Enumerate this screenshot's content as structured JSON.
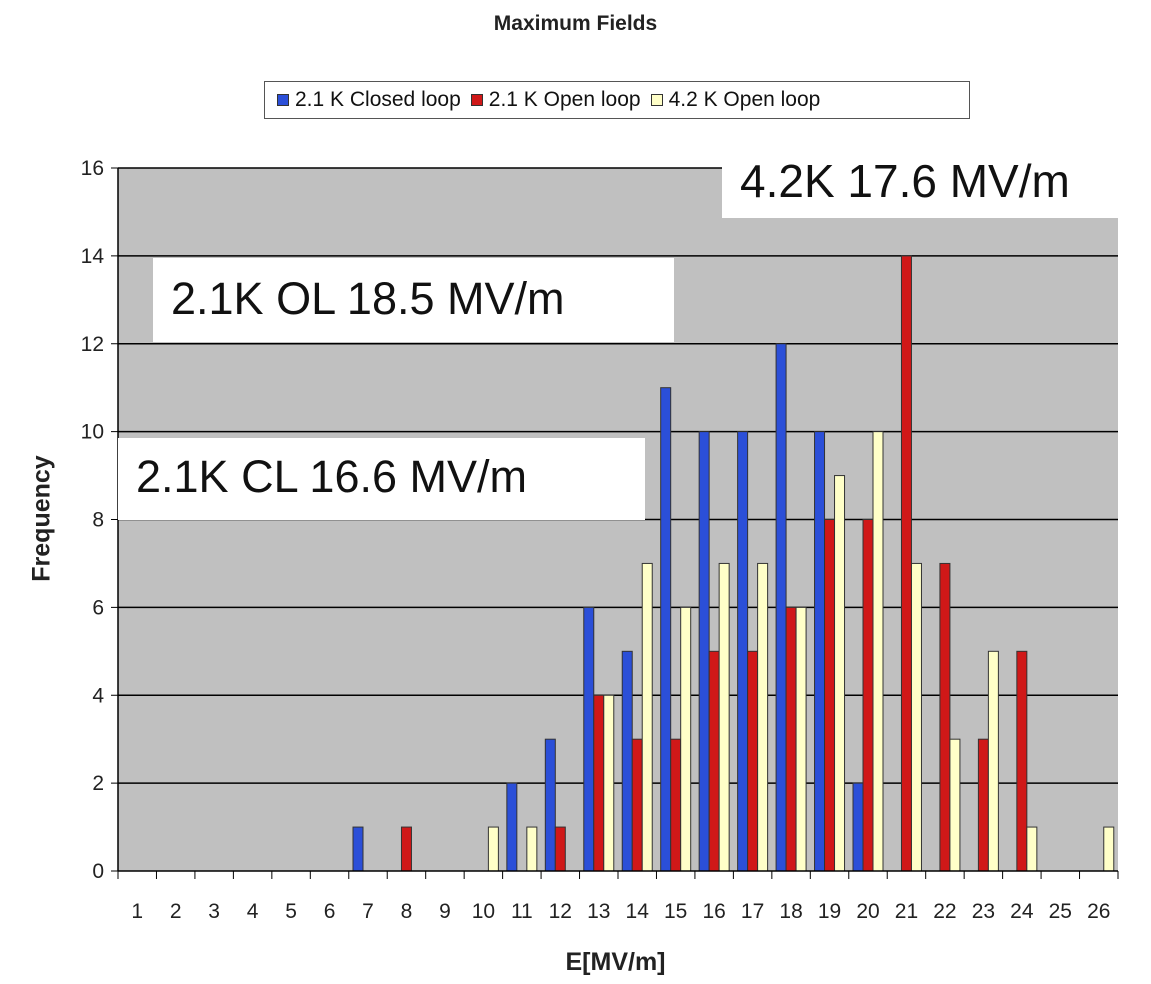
{
  "chart_data": {
    "type": "bar",
    "title": "Maximum Fields",
    "xlabel": "E[MV/m]",
    "ylabel": "Frequency",
    "ylim": [
      0,
      16
    ],
    "yticks": [
      0,
      2,
      4,
      6,
      8,
      10,
      12,
      14,
      16
    ],
    "grid": true,
    "legend_position": "top",
    "categories": [
      "1",
      "2",
      "3",
      "4",
      "5",
      "6",
      "7",
      "8",
      "9",
      "10",
      "11",
      "12",
      "13",
      "14",
      "15",
      "16",
      "17",
      "18",
      "19",
      "20",
      "21",
      "22",
      "23",
      "24",
      "25",
      "26"
    ],
    "series": [
      {
        "name": "2.1 K Closed loop",
        "color": "#2b4fd8",
        "values": [
          0,
          0,
          0,
          0,
          0,
          0,
          1,
          0,
          0,
          0,
          2,
          3,
          6,
          5,
          11,
          10,
          10,
          12,
          10,
          2,
          0,
          0,
          0,
          0,
          0,
          0
        ]
      },
      {
        "name": "2.1 K Open loop",
        "color": "#d01818",
        "values": [
          0,
          0,
          0,
          0,
          0,
          0,
          0,
          1,
          0,
          0,
          0,
          1,
          4,
          3,
          3,
          5,
          5,
          6,
          8,
          8,
          14,
          7,
          3,
          5,
          0,
          0
        ]
      },
      {
        "name": "4.2 K Open loop",
        "color": "#ffffc8",
        "values": [
          0,
          0,
          0,
          0,
          0,
          0,
          0,
          0,
          0,
          1,
          1,
          0,
          4,
          7,
          6,
          7,
          7,
          6,
          9,
          10,
          7,
          3,
          5,
          1,
          0,
          1
        ]
      }
    ],
    "annotations": [
      "4.2K  17.6 MV/m",
      "2.1K OL 18.5 MV/m",
      "2.1K  CL 16.6 MV/m"
    ]
  }
}
